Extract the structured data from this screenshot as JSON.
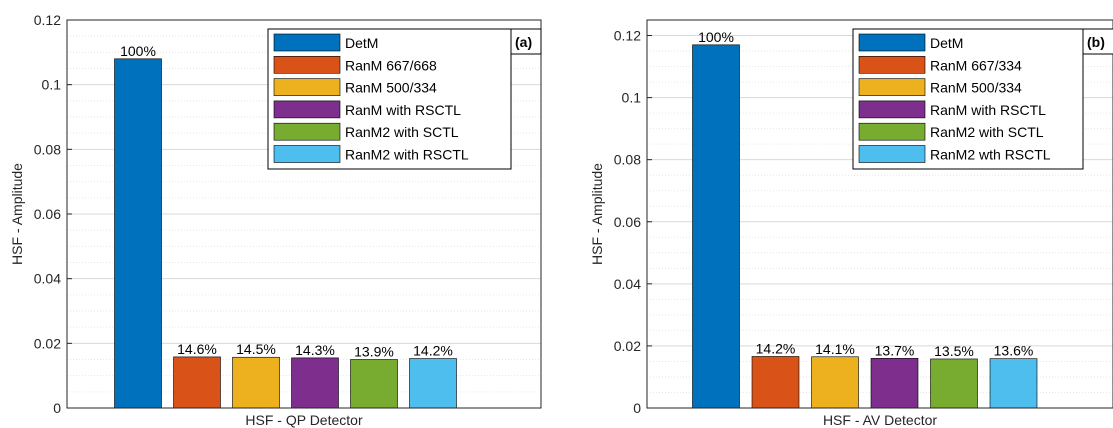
{
  "chart_data": [
    {
      "type": "bar",
      "panel_label": "(a)",
      "xlabel": "HSF - QP Detector",
      "ylabel": "HSF - Amplitude",
      "ylim": [
        0,
        0.12
      ],
      "yticks": [
        "0",
        "0.02",
        "0.04",
        "0.06",
        "0.08",
        "0.1",
        "0.12"
      ],
      "grid": true,
      "legend_position": "top-right",
      "series": [
        {
          "name": "DetM",
          "value": 0.108,
          "label": "100%",
          "color": "#0072BD"
        },
        {
          "name": "RanM 667/668",
          "value": 0.0158,
          "label": "14.6%",
          "color": "#D95319"
        },
        {
          "name": "RanM 500/334",
          "value": 0.0157,
          "label": "14.5%",
          "color": "#EDB120"
        },
        {
          "name": "RanM with RSCTL",
          "value": 0.0155,
          "label": "14.3%",
          "color": "#7E2F8E"
        },
        {
          "name": "RanM2 with SCTL",
          "value": 0.015,
          "label": "13.9%",
          "color": "#77AC30"
        },
        {
          "name": "RanM2 with RSCTL",
          "value": 0.0153,
          "label": "14.2%",
          "color": "#4DBEEE"
        }
      ]
    },
    {
      "type": "bar",
      "panel_label": "(b)",
      "xlabel": "HSF - AV Detector",
      "ylabel": "HSF - Amplitude",
      "ylim": [
        0,
        0.125
      ],
      "yticks": [
        "0",
        "0.02",
        "0.04",
        "0.06",
        "0.08",
        "0.1",
        "0.12"
      ],
      "grid": true,
      "legend_position": "top-right",
      "series": [
        {
          "name": "DetM",
          "value": 0.117,
          "label": "100%",
          "color": "#0072BD"
        },
        {
          "name": "RanM 667/334",
          "value": 0.0166,
          "label": "14.2%",
          "color": "#D95319"
        },
        {
          "name": "RanM 500/334",
          "value": 0.0165,
          "label": "14.1%",
          "color": "#EDB120"
        },
        {
          "name": "RanM with RSCTL",
          "value": 0.016,
          "label": "13.7%",
          "color": "#7E2F8E"
        },
        {
          "name": "RanM2 with SCTL",
          "value": 0.0158,
          "label": "13.5%",
          "color": "#77AC30"
        },
        {
          "name": "RanM2 wth RSCTL",
          "value": 0.0159,
          "label": "13.6%",
          "color": "#4DBEEE"
        }
      ]
    }
  ]
}
